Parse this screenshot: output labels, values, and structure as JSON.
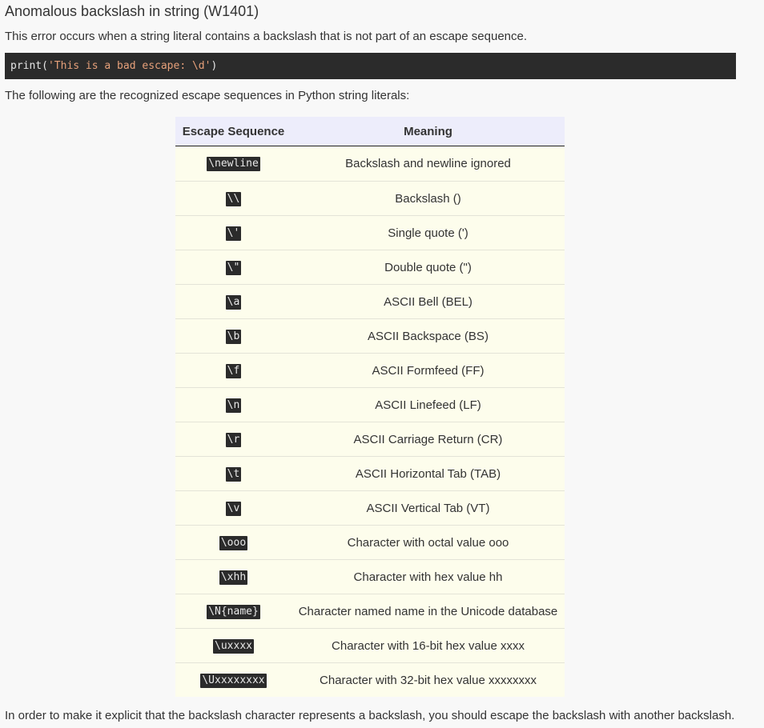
{
  "page": {
    "title": "Anomalous backslash in string (W1401)",
    "intro": "This error occurs when a string literal contains a backslash that is not part of an escape sequence.",
    "code": {
      "prefix": "print(",
      "string": "'This is a bad escape: \\d'",
      "suffix": ")"
    },
    "lead": "The following are the recognized escape sequences in Python string literals:",
    "outro": "In order to make it explicit that the backslash character represents a backslash, you should escape the backslash with another backslash."
  },
  "table": {
    "headers": {
      "sequence": "Escape Sequence",
      "meaning": "Meaning"
    },
    "rows": [
      {
        "seq": "\\newline",
        "meaning": "Backslash and newline ignored"
      },
      {
        "seq": "\\\\",
        "meaning": "Backslash ()"
      },
      {
        "seq": "\\'",
        "meaning": "Single quote (')"
      },
      {
        "seq": "\\\"",
        "meaning": "Double quote (\")"
      },
      {
        "seq": "\\a",
        "meaning": "ASCII Bell (BEL)"
      },
      {
        "seq": "\\b",
        "meaning": "ASCII Backspace (BS)"
      },
      {
        "seq": "\\f",
        "meaning": "ASCII Formfeed (FF)"
      },
      {
        "seq": "\\n",
        "meaning": "ASCII Linefeed (LF)"
      },
      {
        "seq": "\\r",
        "meaning": "ASCII Carriage Return (CR)"
      },
      {
        "seq": "\\t",
        "meaning": "ASCII Horizontal Tab (TAB)"
      },
      {
        "seq": "\\v",
        "meaning": "ASCII Vertical Tab (VT)"
      },
      {
        "seq": "\\ooo",
        "meaning": "Character with octal value ooo"
      },
      {
        "seq": "\\xhh",
        "meaning": "Character with hex value hh"
      },
      {
        "seq": "\\N{name}",
        "meaning": "Character named name in the Unicode database"
      },
      {
        "seq": "\\uxxxx",
        "meaning": "Character with 16-bit hex value xxxx"
      },
      {
        "seq": "\\Uxxxxxxxx",
        "meaning": "Character with 32-bit hex value xxxxxxxx"
      }
    ]
  }
}
